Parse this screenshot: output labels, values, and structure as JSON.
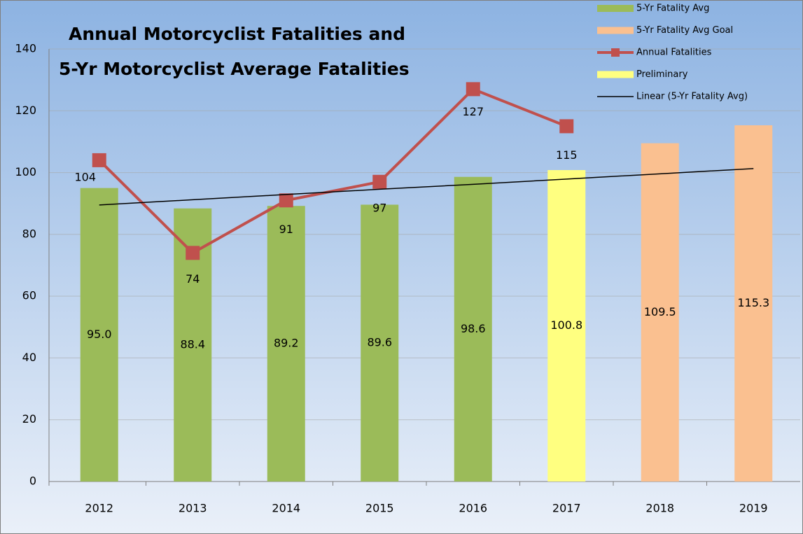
{
  "chart_data": {
    "type": "bar",
    "title": [
      "Annual Motorcyclist Fatalities and",
      "5-Yr Motorcyclist Average Fatalities"
    ],
    "categories": [
      "2012",
      "2013",
      "2014",
      "2015",
      "2016",
      "2017",
      "2018",
      "2019"
    ],
    "ylim": [
      0,
      140
    ],
    "yticks": [
      0,
      20,
      40,
      60,
      80,
      100,
      120,
      140
    ],
    "grid": true,
    "legend": "top-right",
    "series": [
      {
        "name": "5-Yr Fatality Avg",
        "type": "bar",
        "color": "#9bbb59",
        "values": [
          95.0,
          88.4,
          89.2,
          89.6,
          98.6,
          null,
          null,
          null
        ],
        "value_labels": [
          "95.0",
          "88.4",
          "89.2",
          "89.6",
          "98.6",
          null,
          null,
          null
        ]
      },
      {
        "name": "5-Yr Fatality Avg Goal",
        "type": "bar",
        "color": "#fac090",
        "values": [
          null,
          null,
          null,
          null,
          null,
          null,
          109.5,
          115.3
        ],
        "value_labels": [
          null,
          null,
          null,
          null,
          null,
          null,
          "109.5",
          "115.3"
        ]
      },
      {
        "name": "Annual Fatalities",
        "type": "line",
        "color": "#c0504d",
        "marker": "square",
        "values": [
          104,
          74,
          91,
          97,
          127,
          115,
          null,
          null
        ]
      },
      {
        "name": "Preliminary",
        "type": "bar",
        "color": "#ffff80",
        "values": [
          null,
          null,
          null,
          null,
          null,
          100.8,
          null,
          null
        ],
        "value_labels": [
          null,
          null,
          null,
          null,
          null,
          "100.8",
          null,
          null
        ]
      },
      {
        "name": "Linear (5-Yr Fatality Avg)",
        "type": "line",
        "color": "#000000",
        "values": [
          89.5,
          91.2,
          92.9,
          94.6,
          96.2,
          97.9,
          99.6,
          101.3
        ]
      }
    ]
  }
}
